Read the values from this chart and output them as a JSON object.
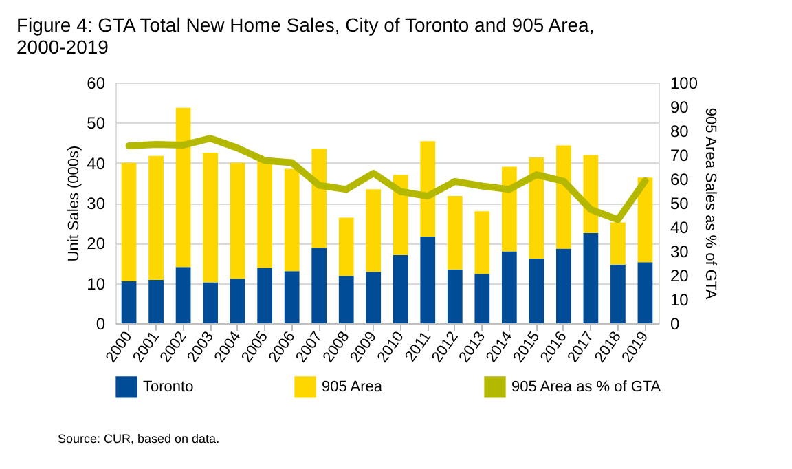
{
  "chart_data": {
    "type": "bar",
    "title": "Figure 4: GTA Total New Home Sales, City of Toronto and 905 Area, 2000-2019",
    "ylabel": "Unit Sales (000s)",
    "y2label": "905 Area Sales as % of GTA",
    "categories": [
      "2000",
      "2001",
      "2002",
      "2003",
      "2004",
      "2005",
      "2006",
      "2007",
      "2008",
      "2009",
      "2010",
      "2011",
      "2012",
      "2013",
      "2014",
      "2015",
      "2016",
      "2017",
      "2018",
      "2019"
    ],
    "stacked": true,
    "series": [
      {
        "name": "Toronto",
        "color": "#004c97",
        "values": [
          10.5,
          10.8,
          14.0,
          10.2,
          11.1,
          13.8,
          13.0,
          18.8,
          11.8,
          12.8,
          17.0,
          21.6,
          13.4,
          12.3,
          17.9,
          16.1,
          18.6,
          22.5,
          14.6,
          15.2
        ]
      },
      {
        "name": "905 Area",
        "color": "#ffd700",
        "values": [
          29.5,
          30.9,
          39.7,
          32.3,
          28.9,
          27.5,
          25.5,
          24.7,
          14.5,
          20.6,
          20.0,
          23.8,
          18.3,
          15.6,
          21.1,
          25.2,
          25.7,
          19.4,
          10.5,
          21.1
        ]
      },
      {
        "name": "905 Area as % of GTA",
        "type": "line",
        "axis": "y2",
        "color": "#b5b800",
        "values": [
          73.7,
          74.3,
          74.0,
          76.8,
          72.8,
          67.6,
          66.7,
          57.3,
          55.6,
          62.3,
          54.7,
          52.8,
          58.9,
          57.0,
          55.6,
          61.7,
          59.0,
          47.2,
          43.0,
          59.2
        ]
      }
    ],
    "ylim": [
      0,
      60
    ],
    "yticks": [
      0,
      10,
      20,
      30,
      40,
      50,
      60
    ],
    "y2lim": [
      0,
      100
    ],
    "y2ticks": [
      0,
      10,
      20,
      30,
      40,
      50,
      60,
      70,
      80,
      90,
      100
    ],
    "grid": "y",
    "legend": "bottom",
    "line_style": "solid",
    "marker": "none",
    "annotations": [
      "Source: CUR, based on data."
    ]
  }
}
